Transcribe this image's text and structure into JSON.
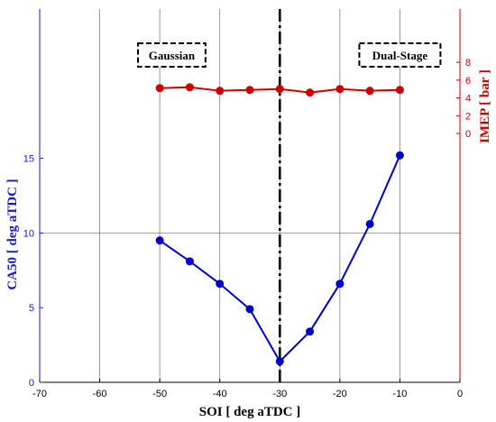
{
  "chart_data": {
    "type": "line",
    "xlabel": "SOI [ deg aTDC ]",
    "ylabel_left": "CA50 [ deg aTDC ]",
    "ylabel_right": "IMEP [ bar ]",
    "xlim": [
      -70,
      0
    ],
    "x_ticks": [
      "-70",
      "-60",
      "-50",
      "-40",
      "-30",
      "-20",
      "-10",
      "0"
    ],
    "ylim_left": [
      0,
      25
    ],
    "y_ticks_left": [
      "0",
      "5",
      "10",
      "15"
    ],
    "ylim_right": [
      -28,
      14
    ],
    "y_ticks_right": [
      "0",
      "2",
      "4",
      "6",
      "8"
    ],
    "grid": true,
    "divider_x": -30,
    "annotations": [
      {
        "text": "Gaussian",
        "x": -48
      },
      {
        "text": "Dual-Stage",
        "x": -10
      }
    ],
    "series": [
      {
        "axis": "left",
        "color": "#0000cc",
        "x": [
          -50,
          -45,
          -40,
          -35,
          -30,
          -25,
          -20,
          -15,
          -10
        ],
        "values": [
          9.5,
          8.1,
          6.6,
          4.9,
          1.4,
          3.4,
          6.6,
          10.6,
          15.2
        ]
      },
      {
        "axis": "right",
        "color": "#cc0000",
        "x": [
          -50,
          -45,
          -40,
          -35,
          -30,
          -25,
          -20,
          -15,
          -10
        ],
        "values": [
          5.1,
          5.2,
          4.8,
          4.9,
          5.0,
          4.6,
          5.0,
          4.8,
          4.9
        ]
      }
    ]
  }
}
